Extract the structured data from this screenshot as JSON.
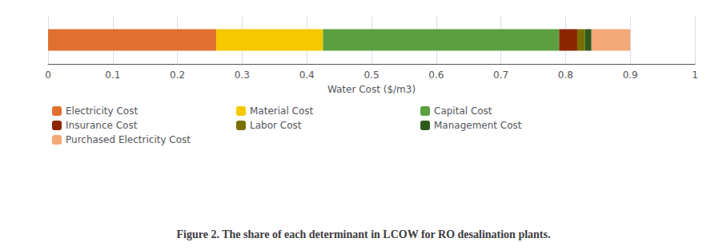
{
  "chart_data": {
    "type": "bar",
    "orientation": "horizontal",
    "stacked": true,
    "title": "Figure 2. The share of each determinant in LCOW for RO desalination plants.",
    "xlabel": "Water Cost ($/m3)",
    "categories": [
      null
    ],
    "series": [
      {
        "name": "Electricity Cost",
        "color": "#E07030",
        "values": [
          0.26
        ]
      },
      {
        "name": "Material Cost",
        "color": "#F5C800",
        "values": [
          0.165
        ]
      },
      {
        "name": "Capital Cost",
        "color": "#5BA040",
        "values": [
          0.365
        ]
      },
      {
        "name": "Insurance Cost",
        "color": "#8B2500",
        "values": [
          0.028
        ]
      },
      {
        "name": "Labor Cost",
        "color": "#7A7000",
        "values": [
          0.012
        ]
      },
      {
        "name": "Management Cost",
        "color": "#2E5A1C",
        "values": [
          0.01
        ]
      },
      {
        "name": "Purchased Electricity Cost",
        "color": "#F4A878",
        "values": [
          0.06
        ]
      }
    ],
    "xlim": [
      0,
      1
    ],
    "xticks": [
      0,
      0.1,
      0.2,
      0.3,
      0.4,
      0.5,
      0.6,
      0.7,
      0.8,
      0.9,
      1
    ],
    "grid": true,
    "legend": "bottom"
  }
}
